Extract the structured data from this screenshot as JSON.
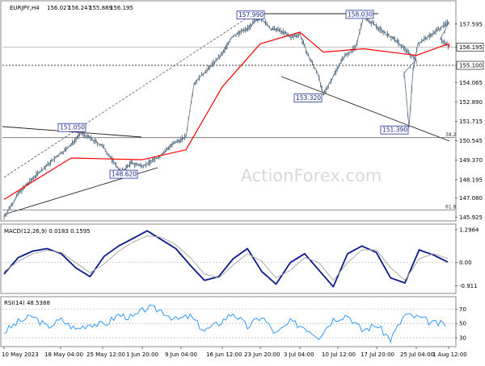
{
  "chart_data": [
    {
      "type": "candlestick",
      "panel": "price",
      "title": "EURJPY,H4",
      "ohlc_readout": [
        "156.027",
        "156.247",
        "155.889",
        "156.195"
      ],
      "watermark": "ActionForex.com",
      "ylim": [
        145.8,
        158.9
      ],
      "y_ticks": [
        "157.595",
        "156.195",
        "155.100",
        "154.065",
        "152.890",
        "151.715",
        "150.545",
        "149.370",
        "148.195",
        "147.080",
        "145.925"
      ],
      "current_price": 156.195,
      "horizontal_lines": [
        {
          "value": 156.195,
          "style": "solid",
          "color": "#bbbbbb"
        },
        {
          "value": 155.1,
          "style": "dashed",
          "color": "#000000",
          "label": "155.100"
        }
      ],
      "fibonacci": [
        {
          "level": "38.2",
          "value": 150.73
        },
        {
          "level": "61.8",
          "value": 146.35
        }
      ],
      "annotations": [
        {
          "text": "157.990",
          "x": "23 Jun 04:00",
          "y": 157.99
        },
        {
          "text": "158.030",
          "x": "17 Jul 20:00",
          "y": 158.03
        },
        {
          "text": "151.050",
          "x": "18 May 04:00",
          "y": 151.05
        },
        {
          "text": "148.620",
          "x": "29 May 12:00",
          "y": 148.62
        },
        {
          "text": "153.320",
          "x": "10 Jul 12:00",
          "y": 153.32
        },
        {
          "text": "151.390",
          "x": "28 Jul 04:00",
          "y": 151.39
        }
      ],
      "series": [
        {
          "name": "price",
          "color": "#5b7387",
          "x": [
            "10 May 2023",
            "12 May",
            "15 May",
            "18 May 04:00",
            "22 May",
            "25 May 12:00",
            "29 May",
            "31 May",
            "1 Jun 20:00",
            "5 Jun",
            "7 Jun",
            "9 Jun 12:00",
            "12 Jun",
            "14 Jun",
            "16 Jun 12:00",
            "19 Jun",
            "21 Jun",
            "23 Jun 20:00",
            "26 Jun",
            "28 Jun",
            "30 Jun",
            "3 Jul 04:00",
            "5 Jul",
            "7 Jul",
            "10 Jul 12:00",
            "12 Jul",
            "14 Jul",
            "17 Jul 20:00",
            "19 Jul",
            "21 Jul",
            "25 Jul 04:00",
            "26 Jul",
            "27 Jul",
            "28 Jul",
            "31 Jul",
            "1 Aug 12:00",
            "2 Aug",
            "3 Aug"
          ],
          "values": [
            145.93,
            147.3,
            148.5,
            150.3,
            151.05,
            150.2,
            148.62,
            149.2,
            149.0,
            149.6,
            150.2,
            150.8,
            154.0,
            154.8,
            155.8,
            156.8,
            157.3,
            157.99,
            157.3,
            157.2,
            156.8,
            157.0,
            155.8,
            154.6,
            153.32,
            155.6,
            156.2,
            158.03,
            157.0,
            156.6,
            155.4,
            154.6,
            151.39,
            154.8,
            156.4,
            157.7,
            156.7,
            156.195
          ]
        },
        {
          "name": "MA",
          "color": "#ff0000",
          "x": [
            "10 May 2023",
            "18 May 04:00",
            "1 Jun 20:00",
            "9 Jun 12:00",
            "16 Jun 12:00",
            "23 Jun 20:00",
            "3 Jul 04:00",
            "10 Jul 12:00",
            "17 Jul 20:00",
            "25 Jul 04:00",
            "1 Aug 12:00",
            "3 Aug"
          ],
          "values": [
            147.0,
            149.5,
            149.4,
            150.0,
            153.8,
            156.4,
            157.1,
            155.9,
            156.1,
            155.7,
            156.4,
            156.2
          ]
        }
      ]
    },
    {
      "type": "line",
      "panel": "macd",
      "title": "MACD(12,26,9) 0.0183 0.1595",
      "ylim": [
        -1.15,
        1.45
      ],
      "y_ticks": [
        "1.2964",
        "0.00",
        "-0.911"
      ],
      "series": [
        {
          "name": "MACD",
          "color": "#0a1a8c",
          "values": [
            -0.45,
            0.2,
            0.45,
            0.55,
            0.35,
            -0.2,
            -0.55,
            0.25,
            0.65,
            0.95,
            1.25,
            0.9,
            0.55,
            -0.1,
            -0.7,
            -0.55,
            0.15,
            0.55,
            -0.35,
            -0.85,
            0.0,
            0.35,
            -0.3,
            -0.95,
            0.35,
            0.65,
            0.4,
            -0.6,
            -0.8,
            0.5,
            0.3,
            0.02
          ]
        },
        {
          "name": "Signal",
          "color": "#aaaaaa",
          "values": [
            -0.35,
            0.05,
            0.35,
            0.48,
            0.4,
            0.0,
            -0.4,
            -0.05,
            0.45,
            0.8,
            1.05,
            1.0,
            0.7,
            0.2,
            -0.45,
            -0.6,
            -0.1,
            0.35,
            0.05,
            -0.6,
            -0.3,
            0.2,
            0.0,
            -0.7,
            0.0,
            0.5,
            0.5,
            -0.2,
            -0.7,
            0.15,
            0.35,
            0.16
          ]
        }
      ]
    },
    {
      "type": "line",
      "panel": "rsi",
      "title": "RSI(14) 48.5388",
      "ylim": [
        20,
        85
      ],
      "y_ticks": [
        "70",
        "50",
        "30"
      ],
      "series": [
        {
          "name": "RSI",
          "color": "#1e90ff",
          "values": [
            38,
            52,
            60,
            45,
            55,
            42,
            50,
            48,
            62,
            58,
            72,
            68,
            55,
            60,
            40,
            50,
            65,
            45,
            60,
            35,
            52,
            45,
            32,
            56,
            62,
            40,
            48,
            28,
            62,
            58,
            50,
            48.5
          ]
        }
      ]
    },
    {
      "type": "axis",
      "panel": "time",
      "x_ticks": [
        "10 May 2023",
        "18 May 04:00",
        "25 May 12:00",
        "1 Jun 20:00",
        "9 Jun 04:00",
        "16 Jun 12:00",
        "23 Jun 20:00",
        "3 Jul 04:00",
        "10 Jul 12:00",
        "17 Jul 20:00",
        "25 Jul 04:00",
        "1 Aug 12:00"
      ]
    }
  ]
}
